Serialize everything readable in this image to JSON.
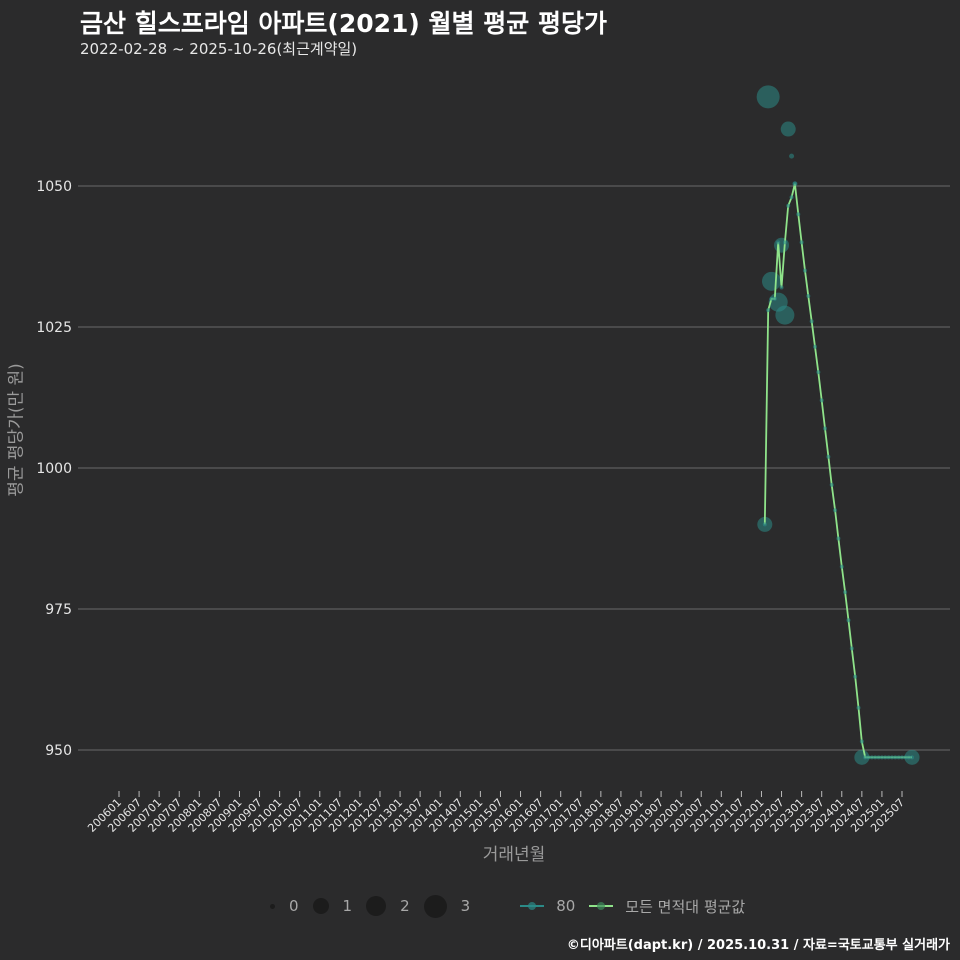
{
  "header": {
    "title": "금산 힐스프라임 아파트(2021) 월별 평균 평당가",
    "subtitle": "2022-02-28 ~ 2025-10-26(최근계약일)"
  },
  "axes": {
    "ylabel": "평균 평당가(만 원)",
    "xlabel": "거래년월"
  },
  "legend": {
    "size_items": [
      {
        "label": "0",
        "size": 6
      },
      {
        "label": "1",
        "size": 16
      },
      {
        "label": "2",
        "size": 20
      },
      {
        "label": "3",
        "size": 24
      }
    ],
    "series": [
      {
        "label": "80",
        "color": "#2b8a87"
      },
      {
        "label": "모든 면적대 평균값",
        "color": "#8fe38a"
      }
    ]
  },
  "footer": "©디아파트(dapt.kr) / 2025.10.31 / 자료=국토교통부 실거래가",
  "colors": {
    "background": "#2b2b2c",
    "grid": "#6a6a6a",
    "point": "#2b8a87",
    "avg_line": "#8fe38a"
  },
  "chart_data": {
    "type": "scatter",
    "title": "금산 힐스프라임 아파트(2021) 월별 평균 평당가",
    "subtitle": "2022-02-28 ~ 2025-10-26(최근계약일)",
    "xlabel": "거래년월",
    "ylabel": "평균 평당가(만 원)",
    "ylim": [
      943,
      1070
    ],
    "yticks": [
      950,
      975,
      1000,
      1025,
      1050
    ],
    "xticks": [
      "200601",
      "200607",
      "200701",
      "200707",
      "200801",
      "200807",
      "200901",
      "200907",
      "201001",
      "201007",
      "201101",
      "201107",
      "201201",
      "201207",
      "201301",
      "201307",
      "201401",
      "201407",
      "201501",
      "201507",
      "201601",
      "201607",
      "201701",
      "201707",
      "201801",
      "201807",
      "201901",
      "201907",
      "202001",
      "202007",
      "202101",
      "202107",
      "202201",
      "202207",
      "202301",
      "202307",
      "202401",
      "202407",
      "202501",
      "202507"
    ],
    "grid": true,
    "legend_position": "bottom",
    "series": [
      {
        "name": "80",
        "type": "scatter",
        "points": [
          {
            "x": "202202",
            "y": 990.0,
            "count": 1
          },
          {
            "x": "202203",
            "y": 1065.8,
            "count": 3
          },
          {
            "x": "202204",
            "y": 1033.1,
            "count": 2
          },
          {
            "x": "202206",
            "y": 1029.4,
            "count": 2
          },
          {
            "x": "202207",
            "y": 1039.5,
            "count": 1
          },
          {
            "x": "202208",
            "y": 1027.1,
            "count": 2
          },
          {
            "x": "202209",
            "y": 1060.1,
            "count": 1
          },
          {
            "x": "202210",
            "y": 1055.3,
            "count": 0
          },
          {
            "x": "202211",
            "y": 1050.4,
            "count": 0
          },
          {
            "x": "202407",
            "y": 948.7,
            "count": 1
          },
          {
            "x": "202510",
            "y": 948.7,
            "count": 1
          }
        ]
      },
      {
        "name": "모든 면적대 평균값",
        "type": "line",
        "points": [
          {
            "x": "202202",
            "y": 990.0
          },
          {
            "x": "202203",
            "y": 1028.0
          },
          {
            "x": "202204",
            "y": 1030.0
          },
          {
            "x": "202205",
            "y": 1030.0
          },
          {
            "x": "202206",
            "y": 1040.0
          },
          {
            "x": "202207",
            "y": 1032.0
          },
          {
            "x": "202208",
            "y": 1040.0
          },
          {
            "x": "202209",
            "y": 1046.5
          },
          {
            "x": "202210",
            "y": 1048.0
          },
          {
            "x": "202211",
            "y": 1050.4
          },
          {
            "x": "202212",
            "y": 1045.0
          },
          {
            "x": "202301",
            "y": 1040.0
          },
          {
            "x": "202302",
            "y": 1035.0
          },
          {
            "x": "202303",
            "y": 1030.5
          },
          {
            "x": "202304",
            "y": 1026.0
          },
          {
            "x": "202305",
            "y": 1021.5
          },
          {
            "x": "202306",
            "y": 1017.0
          },
          {
            "x": "202307",
            "y": 1012.0
          },
          {
            "x": "202308",
            "y": 1007.0
          },
          {
            "x": "202309",
            "y": 1002.0
          },
          {
            "x": "202310",
            "y": 997.0
          },
          {
            "x": "202311",
            "y": 992.5
          },
          {
            "x": "202312",
            "y": 987.5
          },
          {
            "x": "202401",
            "y": 982.5
          },
          {
            "x": "202402",
            "y": 978.0
          },
          {
            "x": "202403",
            "y": 973.0
          },
          {
            "x": "202404",
            "y": 968.0
          },
          {
            "x": "202405",
            "y": 963.0
          },
          {
            "x": "202406",
            "y": 957.5
          },
          {
            "x": "202407",
            "y": 951.5
          },
          {
            "x": "202408",
            "y": 948.7
          },
          {
            "x": "202409",
            "y": 948.7
          },
          {
            "x": "202410",
            "y": 948.7
          },
          {
            "x": "202411",
            "y": 948.7
          },
          {
            "x": "202412",
            "y": 948.7
          },
          {
            "x": "202501",
            "y": 948.7
          },
          {
            "x": "202502",
            "y": 948.7
          },
          {
            "x": "202503",
            "y": 948.7
          },
          {
            "x": "202504",
            "y": 948.7
          },
          {
            "x": "202505",
            "y": 948.7
          },
          {
            "x": "202506",
            "y": 948.7
          },
          {
            "x": "202507",
            "y": 948.7
          },
          {
            "x": "202508",
            "y": 948.7
          },
          {
            "x": "202509",
            "y": 948.7
          },
          {
            "x": "202510",
            "y": 948.7
          }
        ]
      }
    ]
  }
}
